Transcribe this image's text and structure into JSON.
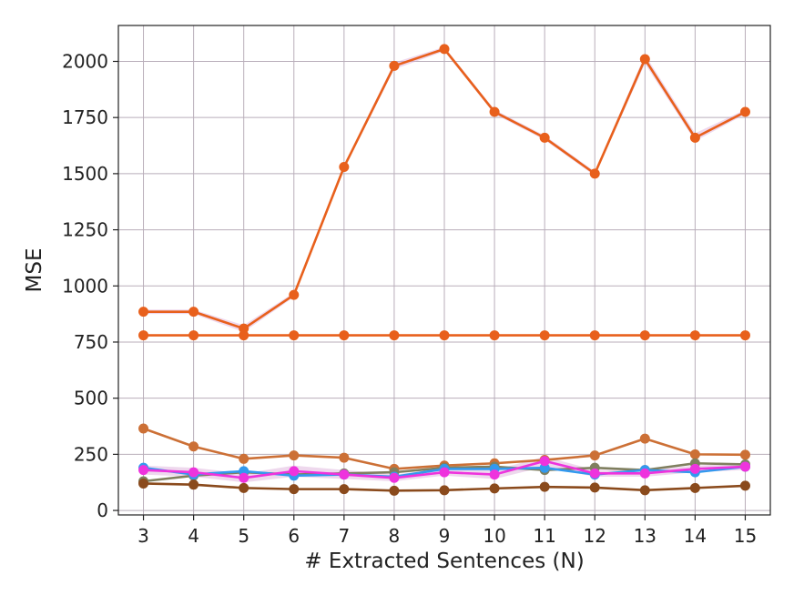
{
  "chart_data": {
    "type": "line",
    "xlabel": "# Extracted Sentences (N)",
    "ylabel": "MSE",
    "x": [
      3,
      4,
      5,
      6,
      7,
      8,
      9,
      10,
      11,
      12,
      13,
      14,
      15
    ],
    "xlim": [
      2.5,
      15.5
    ],
    "ylim": [
      -20,
      2160
    ],
    "yticks": [
      0,
      250,
      500,
      750,
      1000,
      1250,
      1500,
      1750,
      2000
    ],
    "xticks": [
      3,
      4,
      5,
      6,
      7,
      8,
      9,
      10,
      11,
      12,
      13,
      14,
      15
    ],
    "grid": true,
    "legend": false,
    "series": [
      {
        "color": "#e8601c",
        "values": [
          885,
          885,
          810,
          960,
          1530,
          1980,
          2055,
          1775,
          1660,
          1500,
          2010,
          1660,
          1775
        ],
        "band": [
          [
            875,
            895
          ],
          [
            875,
            895
          ],
          [
            795,
            825
          ],
          [
            950,
            970
          ],
          [
            1520,
            1540
          ],
          [
            1965,
            1995
          ],
          [
            2045,
            2065
          ],
          [
            1765,
            1785
          ],
          [
            1650,
            1670
          ],
          [
            1490,
            1510
          ],
          [
            1990,
            2030
          ],
          [
            1645,
            1680
          ],
          [
            1765,
            1785
          ]
        ]
      },
      {
        "color": "#e8601c",
        "values": [
          780,
          780,
          780,
          780,
          780,
          780,
          780,
          780,
          780,
          780,
          780,
          780,
          780
        ]
      },
      {
        "color": "#cc7036",
        "values": [
          365,
          285,
          230,
          245,
          235,
          185,
          200,
          210,
          225,
          245,
          320,
          250,
          248
        ]
      },
      {
        "color": "#7f7f5f",
        "values": [
          130,
          155,
          170,
          160,
          165,
          170,
          190,
          195,
          180,
          190,
          180,
          210,
          205
        ]
      },
      {
        "color": "#3399ee",
        "values": [
          190,
          160,
          175,
          155,
          160,
          150,
          185,
          185,
          190,
          160,
          180,
          170,
          195
        ]
      },
      {
        "color": "#ee33dd",
        "values": [
          180,
          170,
          145,
          175,
          160,
          145,
          170,
          160,
          220,
          165,
          165,
          185,
          195
        ],
        "band": [
          [
            160,
            200
          ],
          [
            150,
            190
          ],
          [
            125,
            165
          ],
          [
            150,
            200
          ],
          [
            140,
            180
          ],
          [
            130,
            160
          ],
          [
            155,
            185
          ],
          [
            140,
            180
          ],
          [
            195,
            240
          ],
          [
            150,
            180
          ],
          [
            150,
            180
          ],
          [
            170,
            200
          ],
          [
            180,
            210
          ]
        ]
      },
      {
        "color": "#8a4a1c",
        "values": [
          120,
          115,
          100,
          95,
          95,
          88,
          90,
          98,
          105,
          102,
          90,
          100,
          110
        ]
      }
    ]
  }
}
